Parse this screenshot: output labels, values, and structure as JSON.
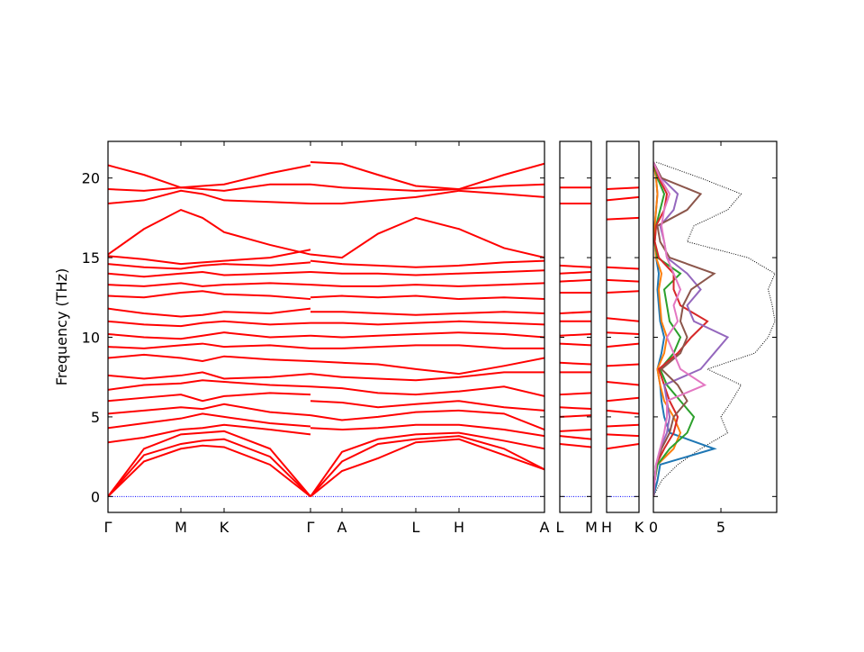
{
  "chart_data": [
    {
      "type": "bands",
      "ylabel": "Frequency (THz)",
      "ylim": [
        -1,
        22.3
      ],
      "yticks": [
        0,
        5,
        10,
        15,
        20
      ],
      "xlim": [
        0,
        4.85
      ],
      "xticks": [
        {
          "value": 0,
          "label": "Γ"
        },
        {
          "value": 0.81,
          "label": "M"
        },
        {
          "value": 1.29,
          "label": "K"
        },
        {
          "value": 2.25,
          "label": "Γ"
        },
        {
          "value": 2.6,
          "label": "A"
        },
        {
          "value": 3.42,
          "label": "L"
        },
        {
          "value": 3.9,
          "label": "H"
        },
        {
          "value": 4.85,
          "label": "A"
        }
      ],
      "color": "#ff0000",
      "zero_line": {
        "value": 0,
        "color": "#0000ff"
      },
      "segments": [
        {
          "x": [
            0,
            0.4,
            0.81,
            1.05,
            1.29,
            1.8,
            2.25
          ],
          "bands": [
            [
              0,
              2.2,
              3.0,
              3.2,
              3.1,
              2.0,
              0
            ],
            [
              0,
              2.6,
              3.3,
              3.5,
              3.6,
              2.5,
              0
            ],
            [
              0,
              3.0,
              3.9,
              4.0,
              4.1,
              3.0,
              0
            ],
            [
              3.4,
              3.7,
              4.2,
              4.3,
              4.5,
              4.2,
              3.9
            ],
            [
              4.3,
              4.6,
              4.9,
              5.2,
              5.0,
              4.6,
              4.4
            ],
            [
              5.2,
              5.4,
              5.6,
              5.5,
              5.8,
              5.3,
              5.1
            ],
            [
              6.0,
              6.2,
              6.4,
              6.0,
              6.3,
              6.5,
              6.4
            ],
            [
              6.7,
              7.0,
              7.1,
              7.3,
              7.2,
              7.0,
              6.9
            ],
            [
              7.6,
              7.4,
              7.6,
              7.8,
              7.4,
              7.5,
              7.7
            ],
            [
              8.7,
              8.9,
              8.7,
              8.5,
              8.8,
              8.6,
              8.5
            ],
            [
              9.4,
              9.3,
              9.5,
              9.6,
              9.4,
              9.5,
              9.3
            ],
            [
              10.2,
              10.0,
              9.9,
              10.1,
              10.3,
              10.0,
              10.1
            ],
            [
              11.0,
              10.8,
              10.7,
              10.9,
              11.0,
              10.8,
              10.9
            ],
            [
              11.8,
              11.5,
              11.3,
              11.4,
              11.6,
              11.5,
              11.8
            ],
            [
              12.6,
              12.5,
              12.8,
              12.9,
              12.7,
              12.6,
              12.4
            ],
            [
              13.3,
              13.2,
              13.4,
              13.2,
              13.3,
              13.4,
              13.3
            ],
            [
              14.0,
              13.8,
              14.0,
              14.1,
              13.9,
              14.0,
              14.1
            ],
            [
              14.6,
              14.4,
              14.3,
              14.5,
              14.6,
              14.5,
              14.7
            ],
            [
              15.1,
              14.9,
              14.6,
              14.7,
              14.8,
              15.0,
              15.5
            ],
            [
              15.2,
              16.8,
              18.0,
              17.5,
              16.6,
              15.8,
              15.2
            ],
            [
              18.4,
              18.6,
              19.2,
              19.0,
              18.6,
              18.5,
              18.4
            ],
            [
              19.3,
              19.2,
              19.4,
              19.3,
              19.2,
              19.6,
              19.6
            ],
            [
              20.8,
              20.2,
              19.4,
              19.5,
              19.6,
              20.3,
              20.8
            ]
          ]
        },
        {
          "x": [
            2.25,
            2.6,
            3.0,
            3.42,
            3.9,
            4.4,
            4.85
          ],
          "bands": [
            [
              0,
              1.6,
              2.4,
              3.4,
              3.6,
              2.6,
              1.7
            ],
            [
              0,
              2.2,
              3.3,
              3.6,
              3.8,
              3.0,
              1.7
            ],
            [
              0,
              2.8,
              3.6,
              3.9,
              4.0,
              3.5,
              3.0
            ],
            [
              4.3,
              4.2,
              4.3,
              4.5,
              4.5,
              4.2,
              3.8
            ],
            [
              5.1,
              4.8,
              5.0,
              5.3,
              5.4,
              5.2,
              4.2
            ],
            [
              6.0,
              5.9,
              5.6,
              5.8,
              6.0,
              5.6,
              5.4
            ],
            [
              6.9,
              6.8,
              6.5,
              6.4,
              6.6,
              6.9,
              6.3
            ],
            [
              7.7,
              7.5,
              7.4,
              7.3,
              7.5,
              7.8,
              7.8
            ],
            [
              8.5,
              8.4,
              8.3,
              8.0,
              7.7,
              8.2,
              8.7
            ],
            [
              9.3,
              9.3,
              9.4,
              9.5,
              9.5,
              9.3,
              9.3
            ],
            [
              10.1,
              10.0,
              10.1,
              10.2,
              10.3,
              10.2,
              10.0
            ],
            [
              10.9,
              10.9,
              10.8,
              10.9,
              11.0,
              10.9,
              10.8
            ],
            [
              11.6,
              11.6,
              11.5,
              11.4,
              11.5,
              11.6,
              11.5
            ],
            [
              12.5,
              12.6,
              12.5,
              12.6,
              12.4,
              12.5,
              12.4
            ],
            [
              13.3,
              13.2,
              13.2,
              13.3,
              13.2,
              13.3,
              13.4
            ],
            [
              14.1,
              14.0,
              14.0,
              13.9,
              14.0,
              14.1,
              14.2
            ],
            [
              14.8,
              14.6,
              14.5,
              14.4,
              14.5,
              14.7,
              14.8
            ],
            [
              15.2,
              15.0,
              16.5,
              17.5,
              16.8,
              15.6,
              15.0
            ],
            [
              18.4,
              18.4,
              18.6,
              18.8,
              19.2,
              19.0,
              18.8
            ],
            [
              19.6,
              19.4,
              19.3,
              19.2,
              19.3,
              19.5,
              19.6
            ],
            [
              21.0,
              20.9,
              20.2,
              19.5,
              19.3,
              20.2,
              20.9
            ]
          ]
        }
      ]
    },
    {
      "type": "bands",
      "xlim": [
        0,
        0.35
      ],
      "xticks": [
        {
          "value": 0,
          "label": "L"
        },
        {
          "value": 0.35,
          "label": "M"
        }
      ],
      "color": "#ff0000",
      "zero_line": {
        "value": 0,
        "color": "#0000ff"
      },
      "segments": [
        {
          "x": [
            0,
            0.35
          ],
          "bands": [
            [
              3.3,
              3.1
            ],
            [
              3.8,
              3.6
            ],
            [
              4.1,
              4.2
            ],
            [
              5.0,
              5.1
            ],
            [
              5.6,
              5.5
            ],
            [
              6.4,
              6.5
            ],
            [
              7.8,
              7.8
            ],
            [
              8.4,
              8.3
            ],
            [
              9.6,
              9.5
            ],
            [
              10.1,
              10.2
            ],
            [
              11.0,
              11.0
            ],
            [
              11.5,
              11.6
            ],
            [
              12.8,
              12.8
            ],
            [
              13.5,
              13.6
            ],
            [
              14.0,
              14.1
            ],
            [
              14.5,
              14.4
            ],
            [
              18.4,
              18.4
            ],
            [
              19.4,
              19.4
            ]
          ]
        }
      ]
    },
    {
      "type": "bands",
      "xlim": [
        0,
        0.36
      ],
      "xticks": [
        {
          "value": 0,
          "label": "H"
        },
        {
          "value": 0.36,
          "label": "K"
        }
      ],
      "color": "#ff0000",
      "zero_line": {
        "value": 0,
        "color": "#0000ff"
      },
      "segments": [
        {
          "x": [
            0,
            0.36
          ],
          "bands": [
            [
              3.0,
              3.3
            ],
            [
              3.9,
              3.8
            ],
            [
              4.4,
              4.5
            ],
            [
              5.4,
              5.2
            ],
            [
              6.0,
              6.2
            ],
            [
              7.2,
              7.0
            ],
            [
              8.2,
              8.3
            ],
            [
              9.4,
              9.6
            ],
            [
              10.3,
              10.2
            ],
            [
              11.2,
              11.0
            ],
            [
              12.8,
              12.9
            ],
            [
              13.6,
              13.5
            ],
            [
              14.4,
              14.3
            ],
            [
              17.4,
              17.5
            ],
            [
              18.6,
              18.8
            ],
            [
              19.3,
              19.4
            ]
          ]
        }
      ]
    },
    {
      "type": "dos",
      "xlim": [
        0,
        9.13
      ],
      "xticks": [
        0,
        5
      ],
      "y": [
        0,
        1,
        2,
        3,
        4,
        5,
        6,
        7,
        8,
        9,
        10,
        11,
        12,
        13,
        14,
        15,
        16,
        17,
        18,
        19,
        20,
        21
      ],
      "series": [
        {
          "color": "#000000",
          "style": "dotted",
          "values": [
            0,
            0.6,
            1.8,
            3.5,
            5.5,
            5.0,
            5.8,
            6.5,
            4.0,
            7.5,
            8.5,
            9.0,
            8.8,
            8.5,
            9.0,
            7.0,
            2.5,
            3.0,
            5.5,
            6.5,
            3.5,
            0.2
          ]
        },
        {
          "color": "#1f77b4",
          "values": [
            0,
            0.3,
            0.5,
            4.5,
            1.2,
            0.8,
            0.6,
            0.5,
            0.3,
            0.6,
            0.8,
            0.5,
            0.4,
            0.3,
            0.4,
            0.2,
            0.1,
            0.1,
            0.2,
            0.3,
            0.2,
            0
          ]
        },
        {
          "color": "#ff7f0e",
          "values": [
            0,
            0.1,
            0.3,
            1.5,
            2.0,
            1.5,
            0.8,
            0.5,
            0.3,
            0.8,
            1.0,
            0.6,
            0.5,
            0.4,
            0.6,
            0.2,
            0.1,
            0.1,
            0.2,
            0.3,
            0.2,
            0
          ]
        },
        {
          "color": "#2ca02c",
          "values": [
            0,
            0.1,
            0.3,
            1.2,
            2.5,
            3.0,
            2.0,
            1.0,
            0.5,
            1.5,
            2.0,
            1.2,
            1.0,
            0.8,
            2.0,
            0.3,
            0.1,
            0.2,
            0.5,
            0.8,
            0.3,
            0
          ]
        },
        {
          "color": "#d62728",
          "values": [
            0,
            0.1,
            0.2,
            0.8,
            1.5,
            1.8,
            1.2,
            0.8,
            0.4,
            1.8,
            2.8,
            4.0,
            2.0,
            1.5,
            1.5,
            0.4,
            0.1,
            0.2,
            0.8,
            1.0,
            0.4,
            0
          ]
        },
        {
          "color": "#9467bd",
          "values": [
            0,
            0.1,
            0.2,
            0.5,
            1.0,
            1.2,
            1.0,
            0.8,
            3.5,
            4.5,
            5.5,
            3.0,
            2.5,
            3.5,
            2.5,
            1.0,
            0.8,
            0.5,
            1.5,
            1.8,
            0.6,
            0
          ]
        },
        {
          "color": "#8c564b",
          "values": [
            0,
            0.1,
            0.2,
            0.6,
            1.2,
            1.5,
            2.5,
            1.8,
            0.6,
            2.0,
            2.5,
            2.0,
            2.2,
            2.8,
            4.5,
            1.2,
            0.5,
            0.3,
            2.5,
            3.5,
            0.6,
            0
          ]
        },
        {
          "color": "#e377c2",
          "values": [
            0,
            0.1,
            0.2,
            0.5,
            0.8,
            1.0,
            1.0,
            3.8,
            2.0,
            1.5,
            1.0,
            1.8,
            1.5,
            2.0,
            1.5,
            1.0,
            0.8,
            0.6,
            0.8,
            1.2,
            0.5,
            0
          ]
        }
      ]
    }
  ]
}
